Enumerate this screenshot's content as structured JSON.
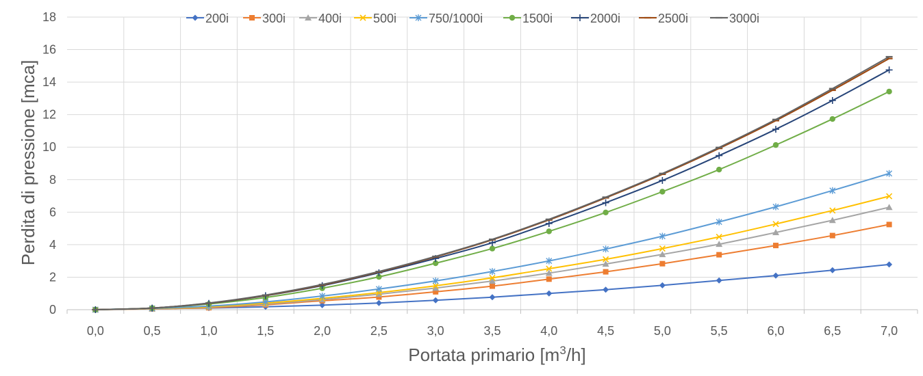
{
  "chart_data": {
    "type": "line",
    "title": "",
    "xlabel": "Portata primario [m",
    "xlabel_sup": "3",
    "xlabel_end": "/h]",
    "ylabel": "Perdita di pressione  [mca]",
    "x": [
      0.0,
      0.5,
      1.0,
      1.5,
      2.0,
      2.5,
      3.0,
      3.5,
      4.0,
      4.5,
      5.0,
      5.5,
      6.0,
      6.5,
      7.0
    ],
    "x_tick_labels": [
      "0,0",
      "0,5",
      "1,0",
      "1,5",
      "2,0",
      "2,5",
      "3,0",
      "3,5",
      "4,0",
      "4,5",
      "5,0",
      "5,5",
      "6,0",
      "6,5",
      "7,0"
    ],
    "y_ticks": [
      0,
      2,
      4,
      6,
      8,
      10,
      12,
      14,
      16,
      18
    ],
    "xlim": [
      0,
      7
    ],
    "ylim": [
      0,
      18
    ],
    "grid": true,
    "legend_position": "top",
    "series": [
      {
        "name": "200i",
        "color": "#4472c4",
        "marker": "diamond",
        "values": [
          0,
          0.07,
          0.1,
          0.18,
          0.28,
          0.41,
          0.58,
          0.77,
          1.0,
          1.23,
          1.5,
          1.8,
          2.1,
          2.43,
          2.78
        ]
      },
      {
        "name": "300i",
        "color": "#ed7d31",
        "marker": "square",
        "values": [
          0,
          0.05,
          0.12,
          0.3,
          0.55,
          0.78,
          1.1,
          1.45,
          1.88,
          2.33,
          2.83,
          3.38,
          3.95,
          4.56,
          5.24
        ]
      },
      {
        "name": "400i",
        "color": "#a5a5a5",
        "marker": "triangle",
        "values": [
          0,
          0.06,
          0.16,
          0.35,
          0.62,
          0.95,
          1.33,
          1.76,
          2.25,
          2.81,
          3.4,
          4.03,
          4.75,
          5.5,
          6.3
        ]
      },
      {
        "name": "500i",
        "color": "#ffc000",
        "marker": "x",
        "values": [
          0,
          0.07,
          0.18,
          0.4,
          0.7,
          1.05,
          1.47,
          1.96,
          2.52,
          3.1,
          3.76,
          4.48,
          5.27,
          6.1,
          6.98
        ]
      },
      {
        "name": "750/1000i",
        "color": "#5b9bd5",
        "marker": "star",
        "values": [
          0,
          0.08,
          0.22,
          0.48,
          0.84,
          1.27,
          1.77,
          2.35,
          3.0,
          3.73,
          4.52,
          5.4,
          6.33,
          7.33,
          8.38
        ]
      },
      {
        "name": "1500i",
        "color": "#70ad47",
        "marker": "circle",
        "values": [
          0,
          0.1,
          0.35,
          0.75,
          1.32,
          2.02,
          2.86,
          3.76,
          4.82,
          5.98,
          7.26,
          8.62,
          10.13,
          11.73,
          13.42
        ]
      },
      {
        "name": "2000i",
        "color": "#264478",
        "marker": "plus",
        "values": [
          0,
          0.1,
          0.39,
          0.86,
          1.48,
          2.27,
          3.15,
          4.12,
          5.3,
          6.58,
          7.95,
          9.48,
          11.1,
          12.87,
          14.75
        ]
      },
      {
        "name": "2500i",
        "color": "#9e480e",
        "marker": "dash",
        "values": [
          0,
          0.1,
          0.4,
          0.88,
          1.52,
          2.32,
          3.25,
          4.3,
          5.52,
          6.88,
          8.33,
          9.92,
          11.63,
          13.5,
          15.45
        ]
      },
      {
        "name": "3000i",
        "color": "#636363",
        "marker": "dash",
        "values": [
          0,
          0.1,
          0.41,
          0.9,
          1.55,
          2.35,
          3.28,
          4.33,
          5.56,
          6.92,
          8.38,
          9.98,
          11.7,
          13.6,
          15.56
        ]
      }
    ]
  }
}
